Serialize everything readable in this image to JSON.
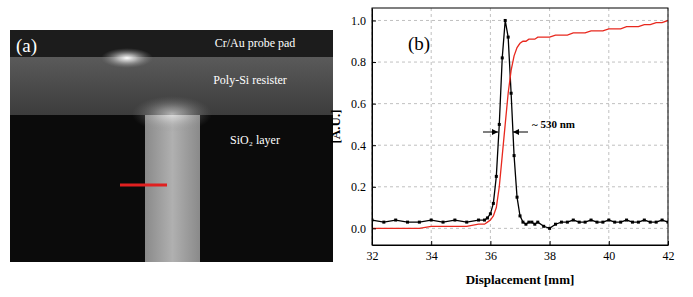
{
  "image_panel": {
    "panel_label": "(a)",
    "labels": [
      "Cr/Au probe pad",
      "Poly-Si resister",
      "SiO₂ layer"
    ]
  },
  "chart_data": {
    "type": "line",
    "panel_label": "(b)",
    "x_label": "Displacement [mm]",
    "y_label": "[A.U.]",
    "annotations": [
      "~ 530 nm"
    ],
    "x": [
      32,
      32.4,
      32.8,
      33.2,
      33.6,
      34,
      34.4,
      34.8,
      35.2,
      35.6,
      35.8,
      35.9,
      36,
      36.1,
      36.2,
      36.3,
      36.4,
      36.5,
      36.6,
      36.7,
      36.8,
      36.9,
      37,
      37.1,
      37.2,
      37.3,
      37.4,
      37.5,
      37.6,
      37.8,
      38,
      38.2,
      38.4,
      38.6,
      38.8,
      39,
      39.2,
      39.4,
      39.6,
      39.8,
      40,
      40.2,
      40.4,
      40.6,
      40.8,
      41,
      41.2,
      41.4,
      41.6,
      41.8,
      42
    ],
    "series": [
      {
        "color": "#000000",
        "marker": "square",
        "line_style": "solid",
        "values": [
          0.04,
          0.03,
          0.04,
          0.03,
          0.03,
          0.04,
          0.03,
          0.04,
          0.03,
          0.04,
          0.04,
          0.05,
          0.07,
          0.12,
          0.25,
          0.5,
          0.82,
          1.0,
          0.92,
          0.65,
          0.35,
          0.15,
          0.06,
          0.03,
          0.02,
          0.03,
          0.03,
          0.02,
          0.03,
          0.01,
          0.0,
          0.02,
          0.03,
          0.03,
          0.04,
          0.03,
          0.03,
          0.04,
          0.03,
          0.03,
          0.04,
          0.03,
          0.03,
          0.04,
          0.03,
          0.03,
          0.04,
          0.03,
          0.03,
          0.04,
          0.03
        ]
      },
      {
        "color": "#e8281e",
        "marker": "none",
        "line_style": "solid",
        "values": [
          0.0,
          0.0,
          0.0,
          0.0,
          0.0,
          0.01,
          0.01,
          0.01,
          0.01,
          0.02,
          0.02,
          0.03,
          0.04,
          0.06,
          0.1,
          0.2,
          0.35,
          0.5,
          0.65,
          0.76,
          0.83,
          0.87,
          0.89,
          0.9,
          0.9,
          0.91,
          0.91,
          0.91,
          0.92,
          0.92,
          0.92,
          0.93,
          0.93,
          0.93,
          0.94,
          0.94,
          0.94,
          0.95,
          0.95,
          0.95,
          0.96,
          0.96,
          0.96,
          0.97,
          0.97,
          0.97,
          0.98,
          0.98,
          0.99,
          0.99,
          1.0
        ]
      }
    ],
    "xlim": [
      32,
      42
    ],
    "xticks": [
      32,
      34,
      36,
      38,
      40,
      42
    ],
    "ylim": [
      -0.08,
      1.06
    ],
    "yticks": [
      {
        "value": 0,
        "label": "0.0"
      },
      {
        "value": 0.2,
        "label": "0.2"
      },
      {
        "value": 0.4,
        "label": "0.4"
      },
      {
        "value": 0.6,
        "label": "0.6"
      },
      {
        "value": 0.8,
        "label": "0.8"
      },
      {
        "value": 1.0,
        "label": "1.0"
      }
    ],
    "grid": true
  }
}
